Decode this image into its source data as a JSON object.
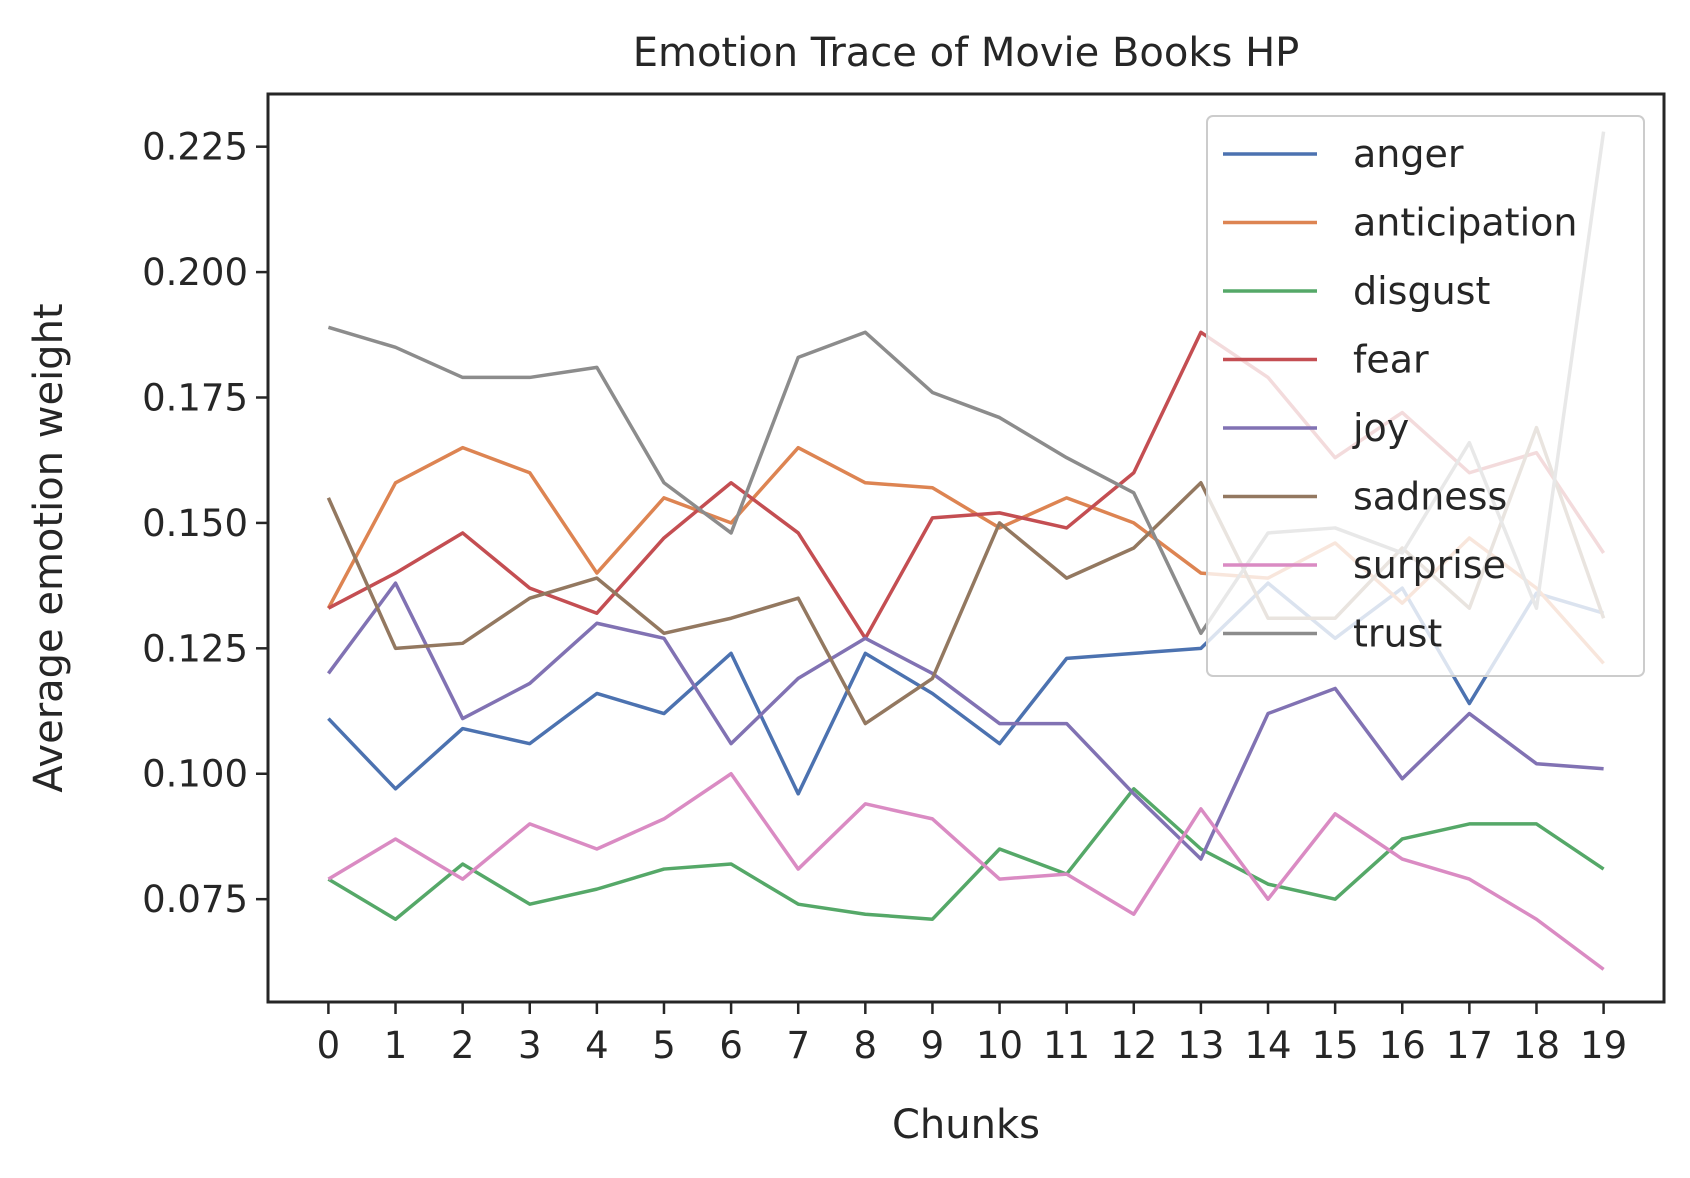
{
  "chart_data": {
    "type": "line",
    "title": "Emotion Trace of Movie Books HP",
    "xlabel": "Chunks",
    "ylabel": "Average emotion weight",
    "x": [
      0,
      1,
      2,
      3,
      4,
      5,
      6,
      7,
      8,
      9,
      10,
      11,
      12,
      13,
      14,
      15,
      16,
      17,
      18,
      19
    ],
    "x_tick_labels": [
      "0",
      "1",
      "2",
      "3",
      "4",
      "5",
      "6",
      "7",
      "8",
      "9",
      "10",
      "11",
      "12",
      "13",
      "14",
      "15",
      "16",
      "17",
      "18",
      "19"
    ],
    "ylim": [
      0.0545,
      0.2355
    ],
    "xlim": [
      -0.9,
      19.9
    ],
    "y_ticks": [
      0.075,
      0.1,
      0.125,
      0.15,
      0.175,
      0.2,
      0.225
    ],
    "y_tick_labels": [
      "0.075",
      "0.100",
      "0.125",
      "0.150",
      "0.175",
      "0.200",
      "0.225"
    ],
    "grid": false,
    "legend_position": "top-right",
    "series": [
      {
        "name": "anger",
        "color": "#4c72b0",
        "values": [
          0.111,
          0.097,
          0.109,
          0.106,
          0.116,
          0.112,
          0.124,
          0.096,
          0.124,
          0.116,
          0.106,
          0.123,
          0.124,
          0.125,
          0.138,
          0.127,
          0.137,
          0.114,
          0.136,
          0.132
        ]
      },
      {
        "name": "anticipation",
        "color": "#dd8452",
        "values": [
          0.133,
          0.158,
          0.165,
          0.16,
          0.14,
          0.155,
          0.15,
          0.165,
          0.158,
          0.157,
          0.149,
          0.155,
          0.15,
          0.14,
          0.139,
          0.146,
          0.134,
          0.147,
          0.137,
          0.122
        ]
      },
      {
        "name": "disgust",
        "color": "#55a868",
        "values": [
          0.079,
          0.071,
          0.082,
          0.074,
          0.077,
          0.081,
          0.082,
          0.074,
          0.072,
          0.071,
          0.085,
          0.08,
          0.097,
          0.085,
          0.078,
          0.075,
          0.087,
          0.09,
          0.09,
          0.081
        ]
      },
      {
        "name": "fear",
        "color": "#c44e52",
        "values": [
          0.133,
          0.14,
          0.148,
          0.137,
          0.132,
          0.147,
          0.158,
          0.148,
          0.127,
          0.151,
          0.152,
          0.149,
          0.16,
          0.188,
          0.179,
          0.163,
          0.172,
          0.16,
          0.164,
          0.144
        ]
      },
      {
        "name": "joy",
        "color": "#8172b3",
        "values": [
          0.12,
          0.138,
          0.111,
          0.118,
          0.13,
          0.127,
          0.106,
          0.119,
          0.127,
          0.12,
          0.11,
          0.11,
          0.096,
          0.083,
          0.112,
          0.117,
          0.099,
          0.112,
          0.102,
          0.101
        ]
      },
      {
        "name": "sadness",
        "color": "#937860",
        "values": [
          0.155,
          0.125,
          0.126,
          0.135,
          0.139,
          0.128,
          0.131,
          0.135,
          0.11,
          0.119,
          0.15,
          0.139,
          0.145,
          0.158,
          0.131,
          0.131,
          0.145,
          0.133,
          0.169,
          0.131
        ]
      },
      {
        "name": "surprise",
        "color": "#da8bc3",
        "values": [
          0.079,
          0.087,
          0.079,
          0.09,
          0.085,
          0.091,
          0.1,
          0.081,
          0.094,
          0.091,
          0.079,
          0.08,
          0.072,
          0.093,
          0.075,
          0.092,
          0.083,
          0.079,
          0.071,
          0.061
        ]
      },
      {
        "name": "trust",
        "color": "#8c8c8c",
        "values": [
          0.189,
          0.185,
          0.179,
          0.179,
          0.181,
          0.158,
          0.148,
          0.183,
          0.188,
          0.176,
          0.171,
          0.163,
          0.156,
          0.128,
          0.148,
          0.149,
          0.144,
          0.166,
          0.133,
          0.228
        ]
      }
    ]
  }
}
